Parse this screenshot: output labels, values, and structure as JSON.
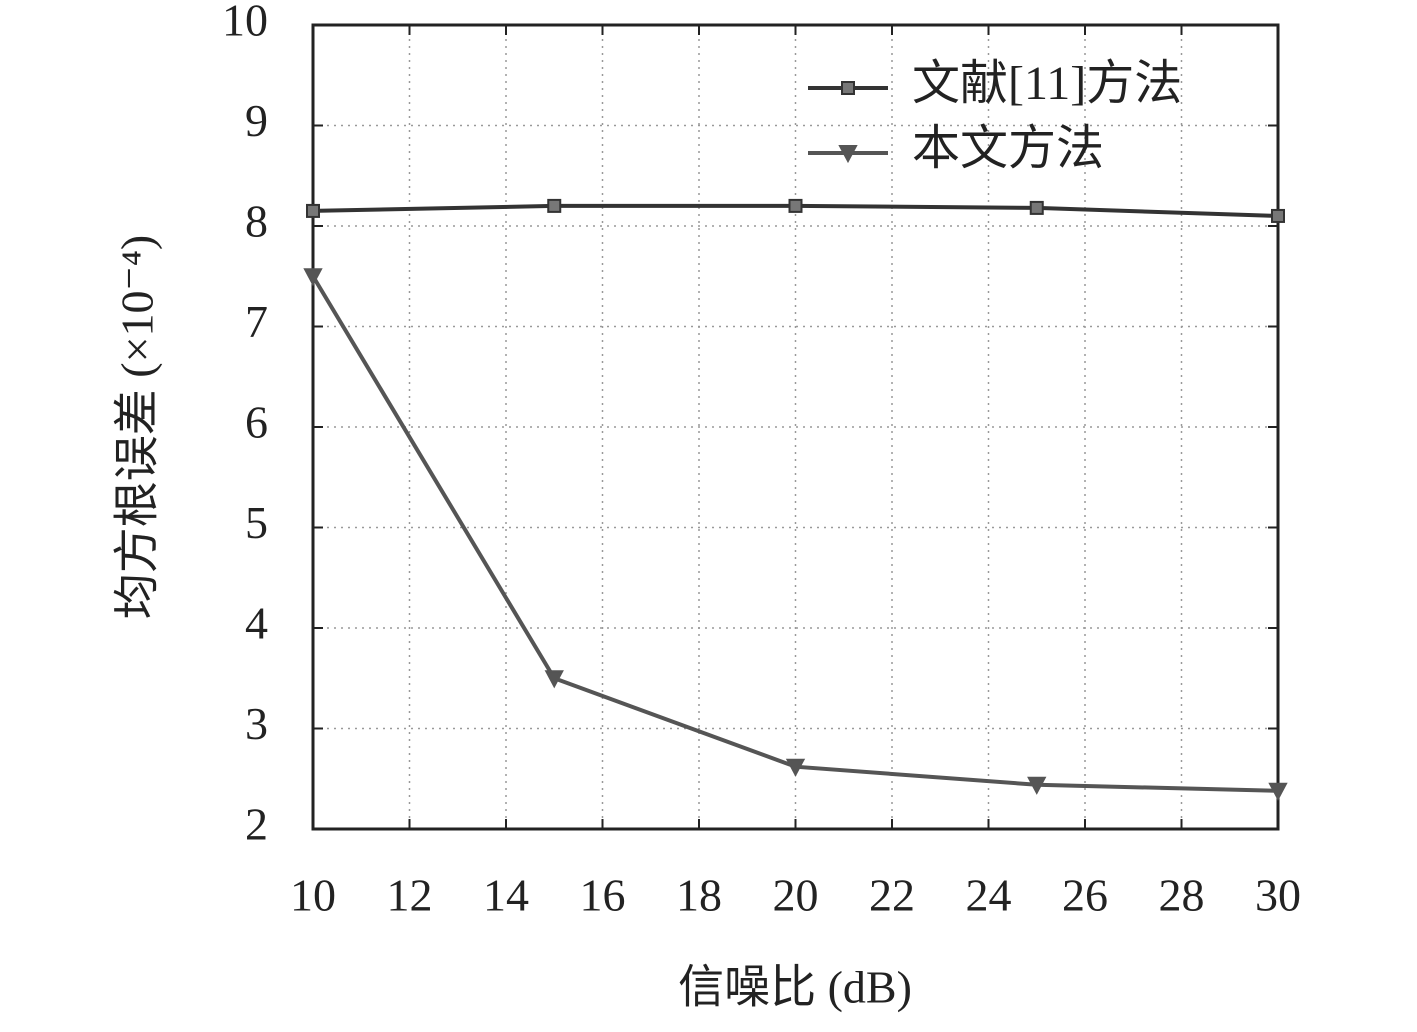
{
  "chart_data": {
    "type": "line",
    "x_label": "信噪比 (dB)",
    "y_label": "均方根误差 (×10⁻⁴)",
    "x": [
      10,
      15,
      20,
      25,
      30
    ],
    "series": [
      {
        "name": "文献[11]方法",
        "color": "#333333",
        "marker": "square",
        "values": [
          8.15,
          8.2,
          8.2,
          8.18,
          8.1
        ]
      },
      {
        "name": "本文方法",
        "color": "#555555",
        "marker": "triangle-down",
        "values": [
          7.5,
          3.5,
          2.62,
          2.44,
          2.38
        ]
      }
    ],
    "xlim": [
      10,
      30
    ],
    "xticks": [
      10,
      12,
      14,
      16,
      18,
      20,
      22,
      24,
      26,
      28,
      30
    ],
    "ylim": [
      2,
      10
    ],
    "yticks": [
      2,
      3,
      4,
      5,
      6,
      7,
      8,
      9,
      10
    ],
    "grid": true,
    "legend": "upper right"
  }
}
